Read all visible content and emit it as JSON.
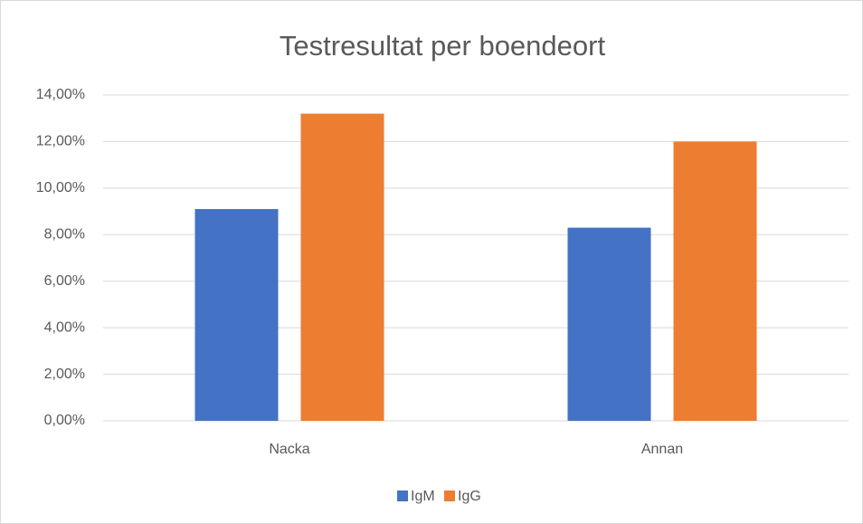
{
  "chart_data": {
    "type": "bar",
    "title": "Testresultat per boendeort",
    "categories": [
      "Nacka",
      "Annan"
    ],
    "series": [
      {
        "name": "IgM",
        "color": "#4472c4",
        "values": [
          9.1,
          8.3
        ]
      },
      {
        "name": "IgG",
        "color": "#ed7d31",
        "values": [
          13.2,
          12.0
        ]
      }
    ],
    "ylim": [
      0,
      14
    ],
    "yticks": [
      {
        "value": 0,
        "label": "0,00%"
      },
      {
        "value": 2,
        "label": "2,00%"
      },
      {
        "value": 4,
        "label": "4,00%"
      },
      {
        "value": 6,
        "label": "6,00%"
      },
      {
        "value": 8,
        "label": "8,00%"
      },
      {
        "value": 10,
        "label": "10,00%"
      },
      {
        "value": 12,
        "label": "12,00%"
      },
      {
        "value": 14,
        "label": "14,00%"
      }
    ],
    "grid": true,
    "legend": "bottom"
  }
}
